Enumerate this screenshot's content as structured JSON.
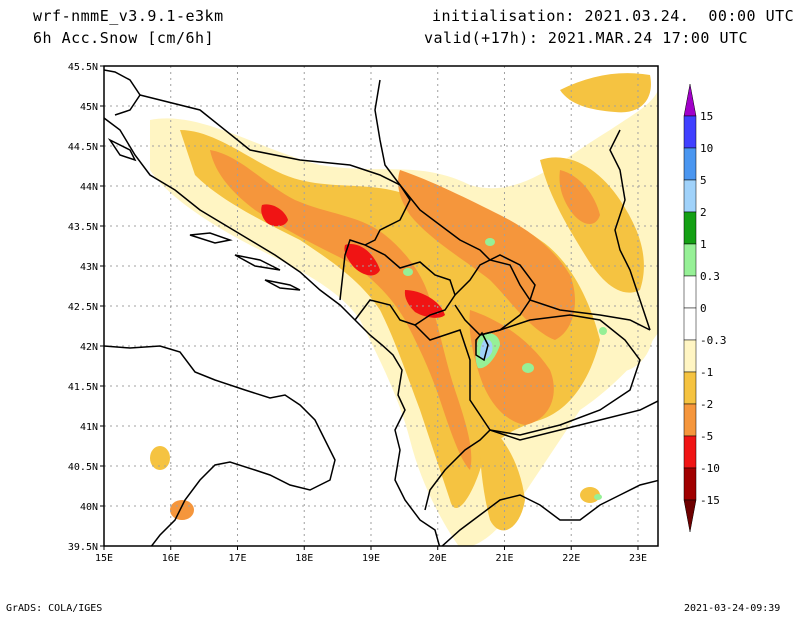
{
  "header": {
    "model": "wrf-nmmE_v3.9.1-e3km",
    "field": "6h Acc.Snow [cm/6h]",
    "init": "initialisation: 2021.03.24.  00:00 UTC",
    "valid": "valid(+17h): 2021.MAR.24 17:00 UTC"
  },
  "footer": {
    "left": "GrADS: COLA/IGES",
    "right": "2021-03-24-09:39"
  },
  "map": {
    "lat_labels": [
      "45.5N",
      "45N",
      "44.5N",
      "44N",
      "43.5N",
      "43N",
      "42.5N",
      "42N",
      "41.5N",
      "41N",
      "40.5N",
      "40N",
      "39.5N"
    ],
    "lon_labels": [
      "15E",
      "16E",
      "17E",
      "18E",
      "19E",
      "20E",
      "21E",
      "22E",
      "23E"
    ],
    "lat_range": [
      39.5,
      45.5
    ],
    "lon_range": [
      15,
      23.3
    ],
    "gridlines": "dotted"
  },
  "legend": {
    "levels": [
      "15",
      "10",
      "5",
      "2",
      "1",
      "0.3",
      "0",
      "-0.3",
      "-1",
      "-2",
      "-5",
      "-10",
      "-15"
    ],
    "colors": [
      "#a000c8",
      "#4040ff",
      "#4a96f0",
      "#a0d2fa",
      "#14a014",
      "#96f096",
      "#ffffff",
      "#ffffff",
      "#fff5c3",
      "#f5c341",
      "#f5963c",
      "#f01414",
      "#a00000",
      "#6e0000"
    ]
  }
}
